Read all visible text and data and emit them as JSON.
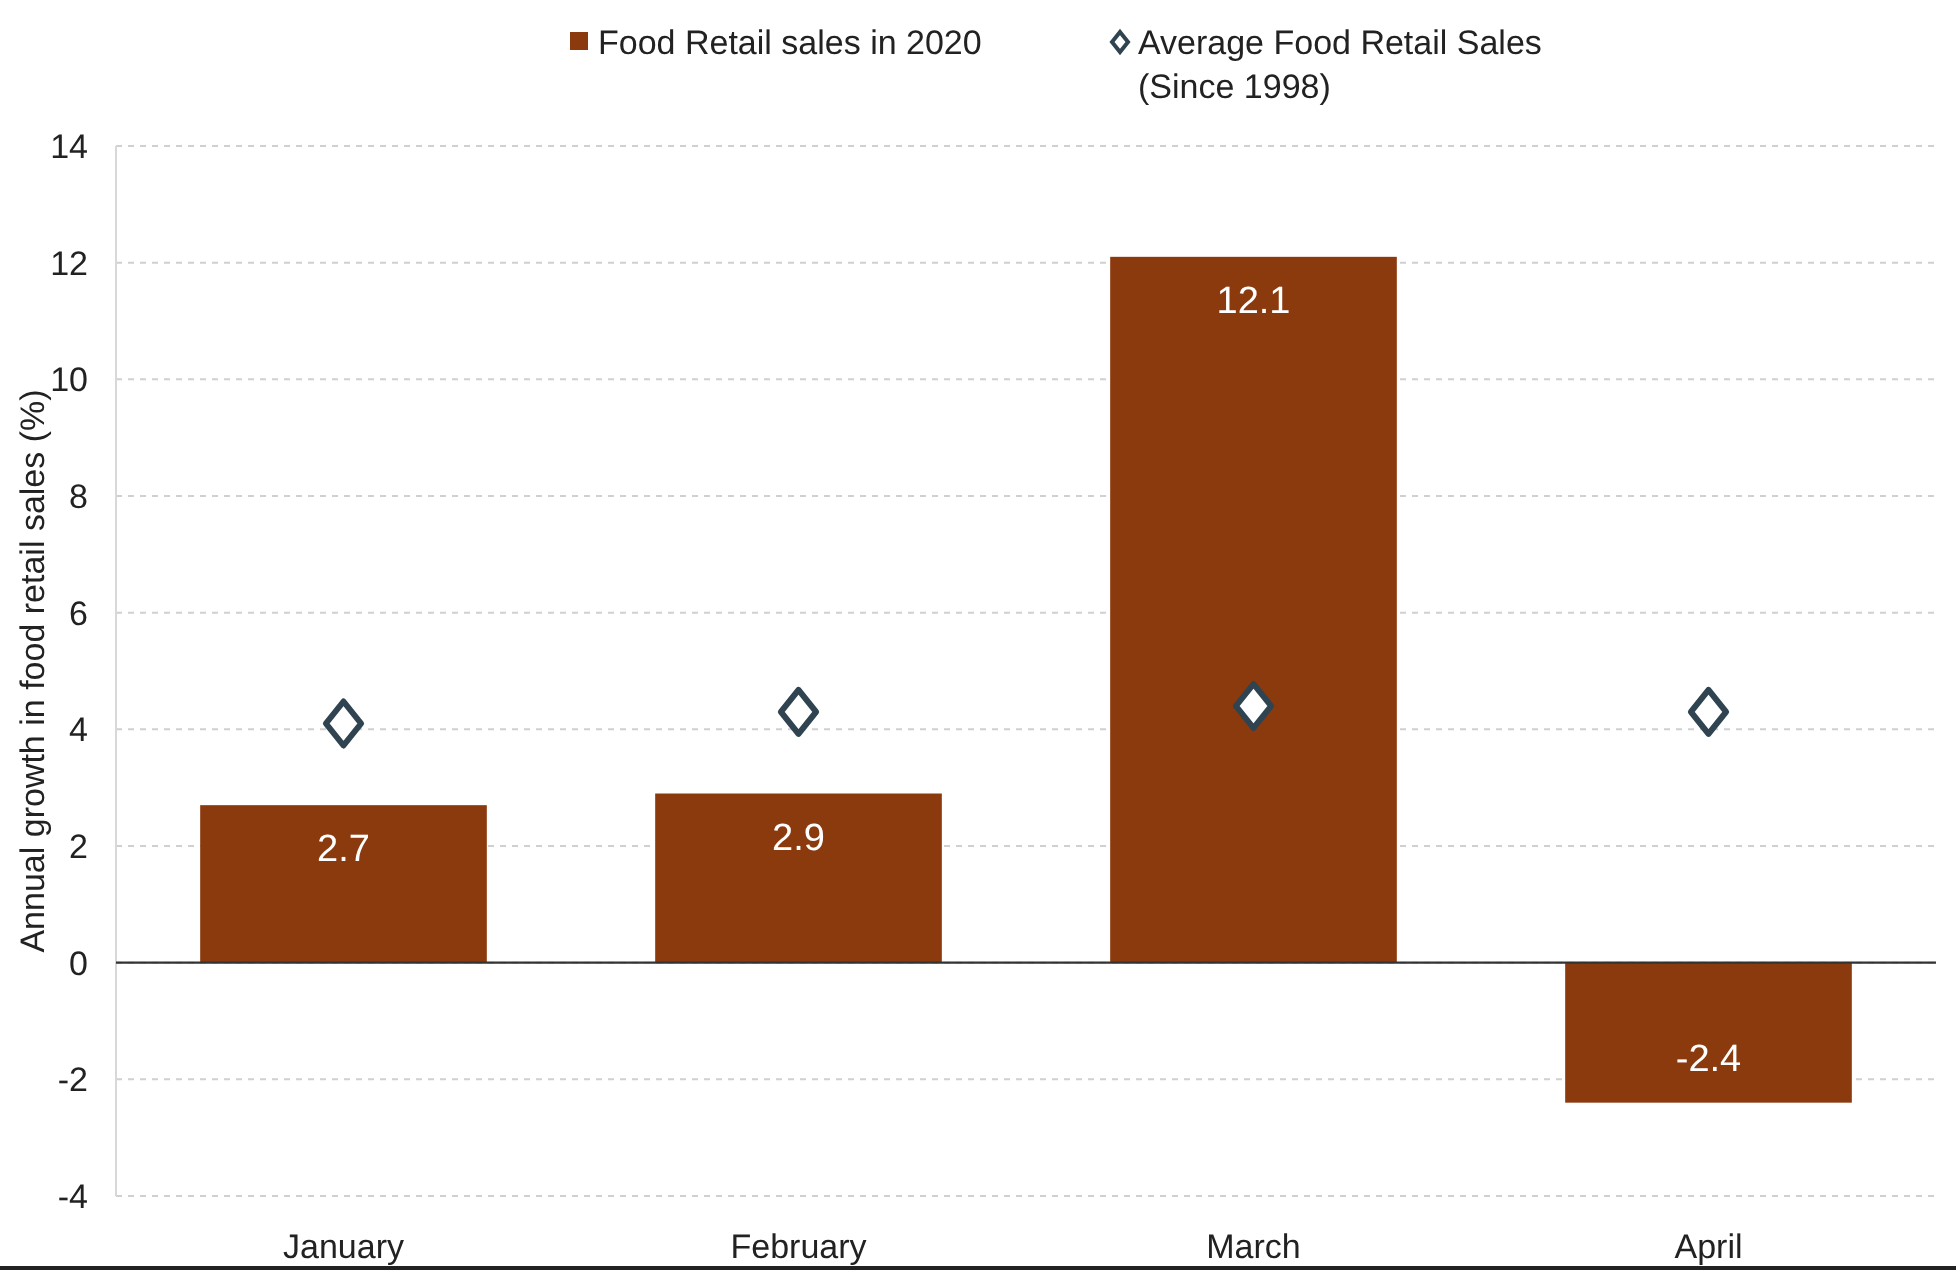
{
  "chart_data": {
    "type": "bar",
    "ylabel": "Annual growth in food retail sales (%)",
    "categories": [
      "January",
      "February",
      "March",
      "April"
    ],
    "series": [
      {
        "name": "Food Retail sales in 2020",
        "color": "#8b3a0e",
        "values": [
          2.7,
          2.9,
          12.1,
          -2.4
        ],
        "value_labels": [
          "2.7",
          "2.9",
          "12.1",
          "-2.4"
        ]
      },
      {
        "name": "Average Food Retail Sales\n(Since 1998)",
        "type": "scatter",
        "color": "#2f4450",
        "values": [
          4.1,
          4.3,
          4.4,
          4.3
        ],
        "marker": "diamond"
      }
    ],
    "ylim": [
      -4,
      14
    ],
    "yticks": [
      -4,
      -2,
      0,
      2,
      4,
      6,
      8,
      10,
      12,
      14
    ],
    "grid": "y",
    "legend": "top"
  }
}
